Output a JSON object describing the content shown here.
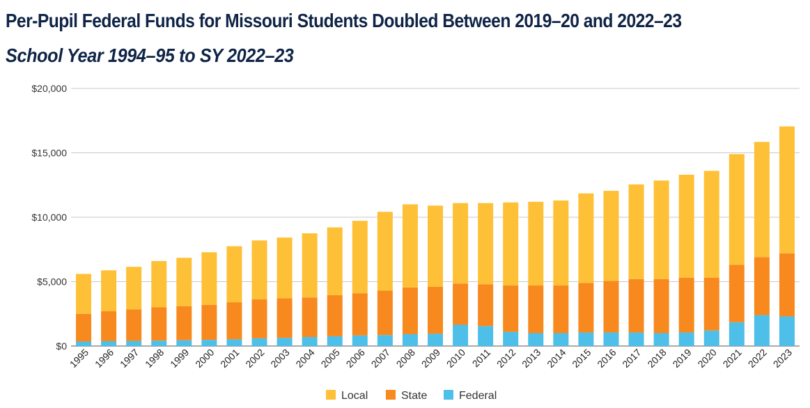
{
  "chart_data": {
    "type": "bar",
    "stacked": true,
    "title": "Per-Pupil Federal Funds for Missouri Students Doubled Between 2019–20 and 2022–23",
    "subtitle": "School Year 1994–95 to SY 2022–23",
    "xlabel": "",
    "ylabel": "",
    "ylim": [
      0,
      20000
    ],
    "yticks": [
      0,
      5000,
      10000,
      15000,
      20000
    ],
    "ytick_labels": [
      "$0",
      "$5,000",
      "$10,000",
      "$15,000",
      "$20,000"
    ],
    "categories": [
      "1995",
      "1996",
      "1997",
      "1998",
      "1999",
      "2000",
      "2001",
      "2002",
      "2003",
      "2004",
      "2005",
      "2006",
      "2007",
      "2008",
      "2009",
      "2010",
      "2011",
      "2012",
      "2013",
      "2014",
      "2015",
      "2016",
      "2017",
      "2018",
      "2019",
      "2020",
      "2021",
      "2022",
      "2023"
    ],
    "series": [
      {
        "name": "Federal",
        "color": "#4dbfe8",
        "values": [
          350,
          380,
          400,
          420,
          450,
          480,
          520,
          600,
          630,
          700,
          760,
          820,
          850,
          920,
          950,
          1650,
          1550,
          1100,
          1000,
          1000,
          1050,
          1050,
          1050,
          1000,
          1050,
          1200,
          1850,
          2400,
          2300
        ]
      },
      {
        "name": "State",
        "color": "#f7891f",
        "values": [
          2150,
          2320,
          2450,
          2580,
          2650,
          2720,
          2880,
          3020,
          3070,
          3070,
          3190,
          3280,
          3450,
          3630,
          3650,
          3200,
          3250,
          3600,
          3700,
          3700,
          3850,
          4000,
          4150,
          4200,
          4250,
          4100,
          4450,
          4500,
          4900
        ]
      },
      {
        "name": "Local",
        "color": "#fec036",
        "values": [
          3100,
          3180,
          3300,
          3600,
          3750,
          4080,
          4350,
          4580,
          4720,
          4980,
          5260,
          5620,
          6120,
          6450,
          6300,
          6250,
          6300,
          6450,
          6500,
          6600,
          6950,
          7000,
          7350,
          7650,
          8000,
          8300,
          8600,
          8950,
          9850
        ]
      }
    ],
    "legend": {
      "position": "bottom-center",
      "order": [
        "Local",
        "State",
        "Federal"
      ]
    },
    "grid": true
  }
}
